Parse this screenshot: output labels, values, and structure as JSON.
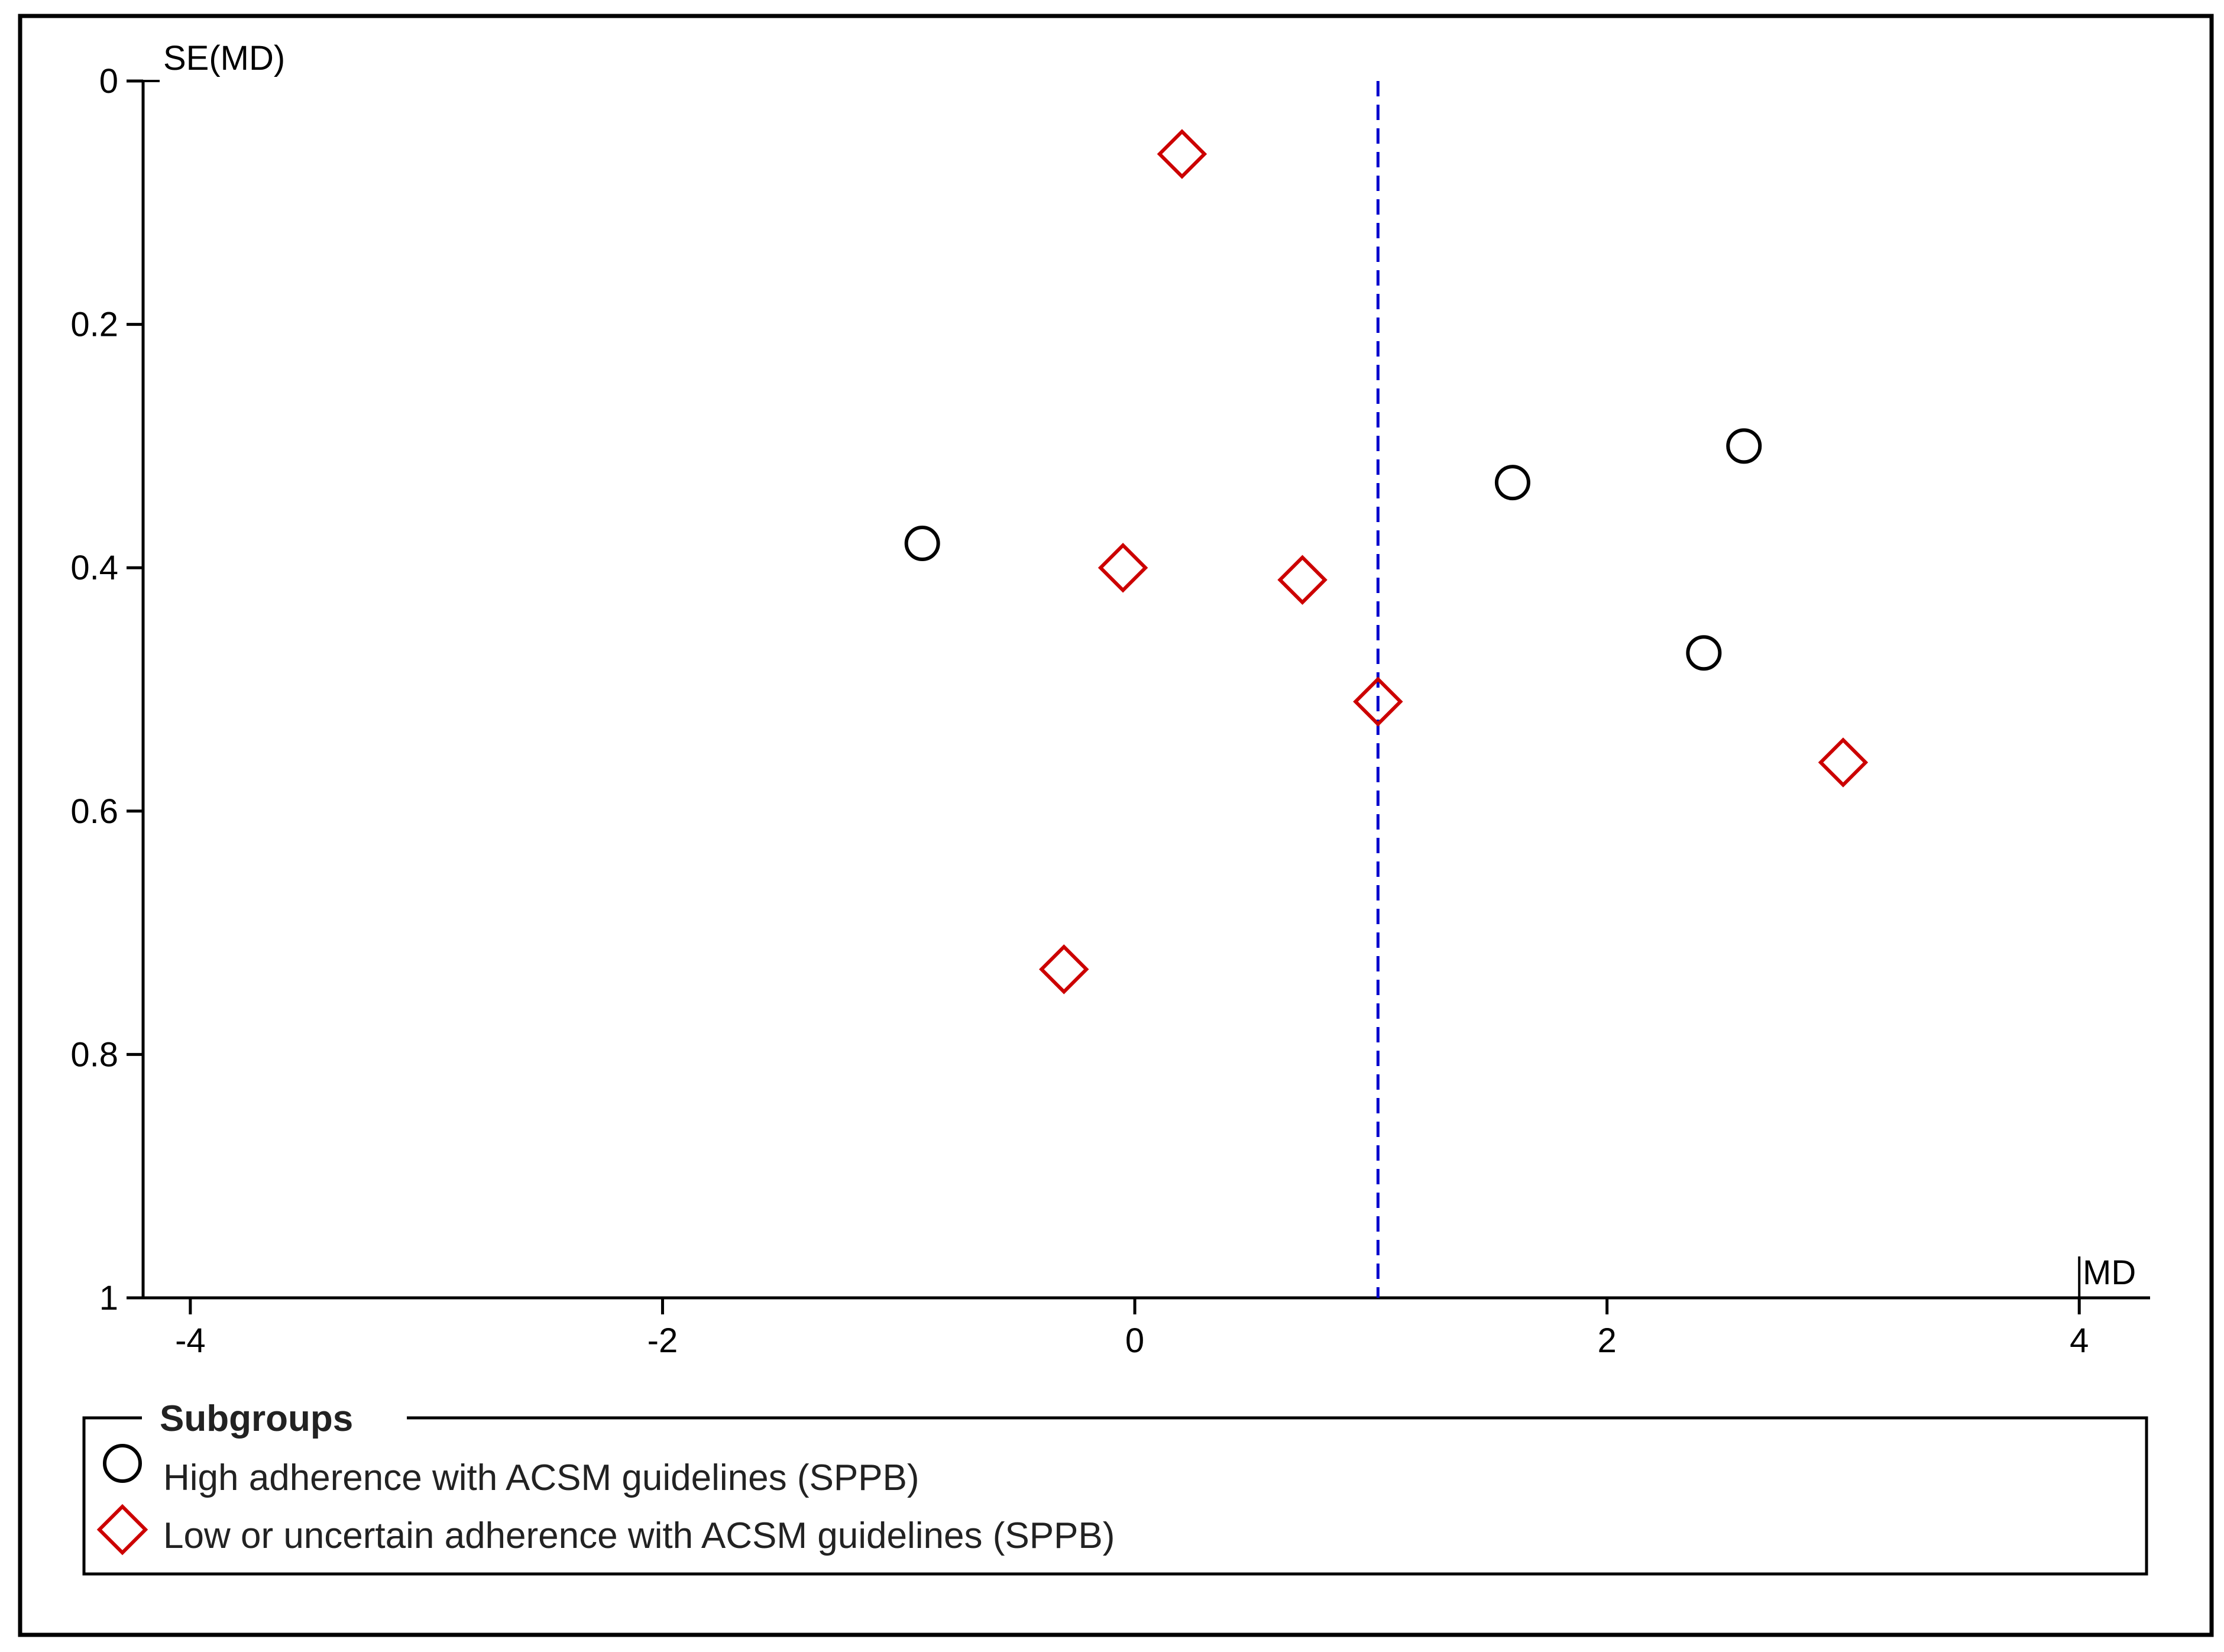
{
  "chart_data": {
    "type": "scatter",
    "title": "",
    "xlabel": "MD",
    "ylabel": "SE(MD)",
    "xlim": [
      -4.2,
      4.3
    ],
    "ylim": [
      0,
      1
    ],
    "y_inverted": true,
    "x_ticks": [
      -4,
      -2,
      0,
      2,
      4
    ],
    "x_tick_labels": [
      "-4",
      "-2",
      "0",
      "2",
      "4"
    ],
    "y_ticks": [
      0,
      0.2,
      0.4,
      0.6,
      0.8,
      1
    ],
    "y_tick_labels": [
      "0",
      "0.2",
      "0.4",
      "0.6",
      "0.8",
      "1"
    ],
    "reference_line": {
      "x": 1.03,
      "style": "dashed",
      "color": "#0000cc"
    },
    "series": [
      {
        "name": "High adherence with ACSM guidelines (SPPB)",
        "marker": "circle",
        "color": "#000000",
        "points": [
          {
            "x": -0.9,
            "y": 0.38
          },
          {
            "x": 1.6,
            "y": 0.33
          },
          {
            "x": 2.58,
            "y": 0.3
          },
          {
            "x": 2.41,
            "y": 0.47
          }
        ]
      },
      {
        "name": "Low or uncertain adherence with ACSM guidelines (SPPB)",
        "marker": "diamond",
        "color": "#cc0000",
        "points": [
          {
            "x": 0.2,
            "y": 0.06
          },
          {
            "x": -0.05,
            "y": 0.4
          },
          {
            "x": 0.71,
            "y": 0.41
          },
          {
            "x": 1.03,
            "y": 0.51
          },
          {
            "x": 3.0,
            "y": 0.56
          },
          {
            "x": -0.3,
            "y": 0.73
          }
        ]
      }
    ],
    "legend": {
      "title": "Subgroups",
      "position": "bottom",
      "entries": [
        "High adherence with ACSM guidelines (SPPB)",
        "Low or uncertain adherence with ACSM guidelines (SPPB)"
      ]
    }
  }
}
